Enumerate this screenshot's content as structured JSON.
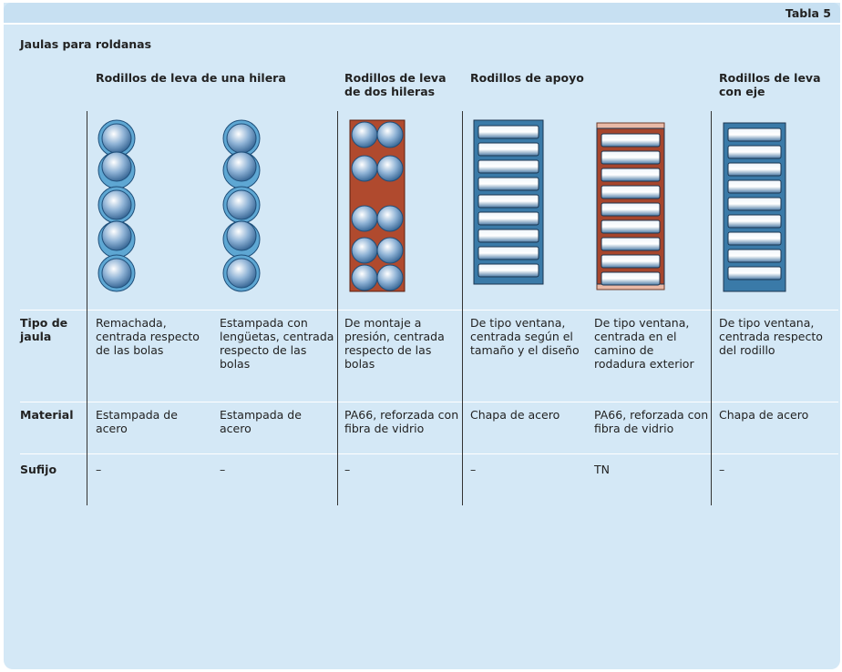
{
  "header": {
    "label": "Tabla 5",
    "title": "Jaulas para roldanas"
  },
  "table": {
    "groups": [
      "Rodillos de leva de una hilera",
      "Rodillos de leva de dos hileras",
      "Rodillos de apoyo",
      "Rodillos de leva con eje"
    ],
    "rows": [
      [
        "Tipo de jaula",
        "Remachada, centrada respecto de las bolas",
        "Estampada con lengüetas, centrada respecto de las bolas",
        "De montaje a presión, centrada respecto de las bolas",
        "De tipo ventana, centrada según el tamaño y el diseño",
        "De tipo ventana, centrada en el camino de rodadura exterior",
        "De tipo ventana, centrada respecto del rodillo"
      ],
      [
        "Material",
        "Estampada de acero",
        "Estampada de acero",
        "PA66, reforzada con fibra de vidrio",
        "Chapa de acero",
        "PA66, reforzada con fibra de vidrio",
        "Chapa de acero"
      ],
      [
        "Sufijo",
        "–",
        "–",
        "–",
        "–",
        "TN",
        "–"
      ]
    ]
  }
}
